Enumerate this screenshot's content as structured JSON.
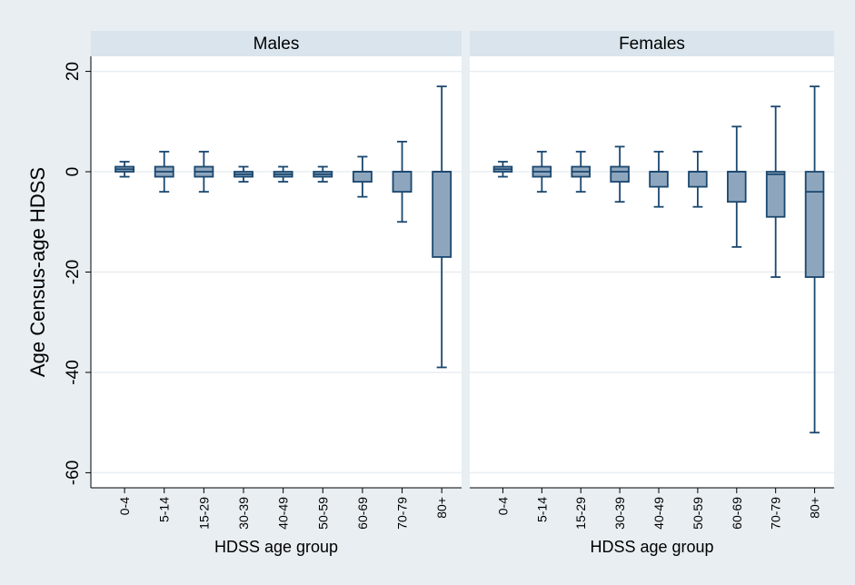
{
  "chart_data": {
    "type": "box",
    "ylabel": "Age Census-age HDSS",
    "ylim": [
      -63,
      23
    ],
    "yticks": [
      20,
      0,
      -20,
      -40,
      -60
    ],
    "yticklabels": [
      "20",
      "0",
      "-20",
      "-40",
      "-60"
    ],
    "categories": [
      "0-4",
      "5-14",
      "15-29",
      "30-39",
      "40-49",
      "50-59",
      "60-69",
      "70-79",
      "80+"
    ],
    "xlabel": "HDSS age group",
    "grid": true,
    "colors": {
      "background": "#e8eef2",
      "plot": "#ffffff",
      "strip": "#d9e4ec",
      "box_fill": "#8ea6bd",
      "box_stroke": "#1a476f",
      "grid": "#e8eef2"
    },
    "panels": [
      {
        "title": "Males",
        "xlabel": "HDSS age group",
        "boxes": [
          {
            "category": "0-4",
            "whisker_low": -1,
            "q1": 0,
            "median": 0.5,
            "q3": 1,
            "whisker_high": 2
          },
          {
            "category": "5-14",
            "whisker_low": -4,
            "q1": -1,
            "median": 0,
            "q3": 1,
            "whisker_high": 4
          },
          {
            "category": "15-29",
            "whisker_low": -4,
            "q1": -1,
            "median": 0,
            "q3": 1,
            "whisker_high": 4
          },
          {
            "category": "30-39",
            "whisker_low": -2,
            "q1": -1,
            "median": -0.5,
            "q3": 0,
            "whisker_high": 1
          },
          {
            "category": "40-49",
            "whisker_low": -2,
            "q1": -1,
            "median": -0.5,
            "q3": 0,
            "whisker_high": 1
          },
          {
            "category": "50-59",
            "whisker_low": -2,
            "q1": -1,
            "median": -0.5,
            "q3": 0,
            "whisker_high": 1
          },
          {
            "category": "60-69",
            "whisker_low": -5,
            "q1": -2,
            "median": 0,
            "q3": 0,
            "whisker_high": 3
          },
          {
            "category": "70-79",
            "whisker_low": -10,
            "q1": -4,
            "median": 0,
            "q3": 0,
            "whisker_high": 6
          },
          {
            "category": "80+",
            "whisker_low": -39,
            "q1": -17,
            "median": 0,
            "q3": 0,
            "whisker_high": 17
          }
        ]
      },
      {
        "title": "Females",
        "xlabel": "HDSS age group",
        "boxes": [
          {
            "category": "0-4",
            "whisker_low": -1,
            "q1": 0,
            "median": 0.5,
            "q3": 1,
            "whisker_high": 2
          },
          {
            "category": "5-14",
            "whisker_low": -4,
            "q1": -1,
            "median": 0,
            "q3": 1,
            "whisker_high": 4
          },
          {
            "category": "15-29",
            "whisker_low": -4,
            "q1": -1,
            "median": 0,
            "q3": 1,
            "whisker_high": 4
          },
          {
            "category": "30-39",
            "whisker_low": -6,
            "q1": -2,
            "median": 0,
            "q3": 1,
            "whisker_high": 5
          },
          {
            "category": "40-49",
            "whisker_low": -7,
            "q1": -3,
            "median": 0,
            "q3": 0,
            "whisker_high": 4
          },
          {
            "category": "50-59",
            "whisker_low": -7,
            "q1": -3,
            "median": 0,
            "q3": 0,
            "whisker_high": 4
          },
          {
            "category": "60-69",
            "whisker_low": -15,
            "q1": -6,
            "median": 0,
            "q3": 0,
            "whisker_high": 9
          },
          {
            "category": "70-79",
            "whisker_low": -21,
            "q1": -9,
            "median": -0.5,
            "q3": 0,
            "whisker_high": 13
          },
          {
            "category": "80+",
            "whisker_low": -52,
            "q1": -21,
            "median": -4,
            "q3": 0,
            "whisker_high": 17
          }
        ]
      }
    ]
  }
}
